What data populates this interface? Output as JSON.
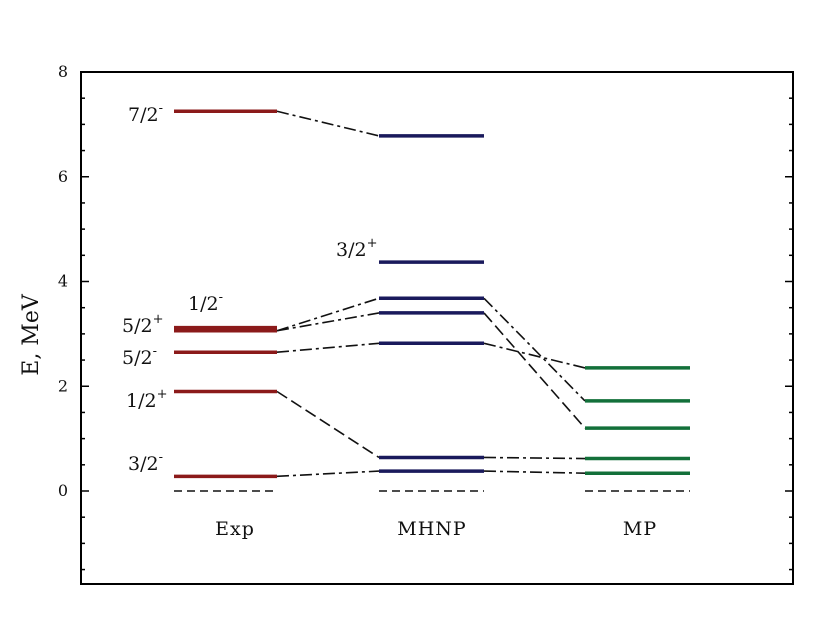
{
  "chart_data": {
    "type": "level-scheme",
    "ylabel": "E, MeV",
    "ylim": [
      -1.8,
      8
    ],
    "yticks": [
      "0",
      "2",
      "4",
      "6",
      "8"
    ],
    "ytick_values": [
      0,
      2,
      4,
      6,
      8
    ],
    "grid": false,
    "columns": [
      {
        "name": "Exp",
        "color": "#8b1a1a",
        "levels": [
          {
            "e": 0,
            "style": "dashed"
          },
          {
            "e": 0.28,
            "label": "3/2",
            "parity": "-"
          },
          {
            "e": 1.9,
            "label": "1/2",
            "parity": "+"
          },
          {
            "e": 2.65,
            "label": "5/2",
            "parity": "-"
          },
          {
            "e": 3.06,
            "label": "5/2",
            "parity": "+"
          },
          {
            "e": 3.12,
            "label": "1/2",
            "parity": "-"
          },
          {
            "e": 7.25,
            "label": "7/2",
            "parity": "-"
          }
        ]
      },
      {
        "name": "MHNP",
        "color": "#1a1a5c",
        "levels": [
          {
            "e": 0,
            "style": "dashed"
          },
          {
            "e": 0.38
          },
          {
            "e": 0.64
          },
          {
            "e": 2.82
          },
          {
            "e": 3.4
          },
          {
            "e": 3.68
          },
          {
            "e": 4.37,
            "label": "3/2",
            "parity": "+"
          },
          {
            "e": 6.78
          }
        ]
      },
      {
        "name": "MP",
        "color": "#13703a",
        "levels": [
          {
            "e": 0,
            "style": "dashed"
          },
          {
            "e": 0.34
          },
          {
            "e": 0.62
          },
          {
            "e": 1.2
          },
          {
            "e": 1.72
          },
          {
            "e": 2.35
          }
        ]
      }
    ],
    "connections": [
      {
        "from": [
          0,
          7.25
        ],
        "to": [
          1,
          6.78
        ],
        "style": "dash-dot"
      },
      {
        "from": [
          0,
          3.06
        ],
        "to": [
          1,
          3.68
        ],
        "style": "dash-dot"
      },
      {
        "from": [
          0,
          3.06
        ],
        "to": [
          1,
          3.4
        ],
        "style": "dash-dot"
      },
      {
        "from": [
          0,
          2.65
        ],
        "to": [
          1,
          2.82
        ],
        "style": "dash-dot"
      },
      {
        "from": [
          0,
          1.9
        ],
        "to": [
          1,
          0.64
        ],
        "style": "long-dash"
      },
      {
        "from": [
          0,
          0.28
        ],
        "to": [
          1,
          0.38
        ],
        "style": "dash-dot"
      },
      {
        "from": [
          1,
          3.68
        ],
        "to": [
          2,
          1.72
        ],
        "style": "dash-dot"
      },
      {
        "from": [
          1,
          3.4
        ],
        "to": [
          2,
          1.2
        ],
        "style": "long-dash"
      },
      {
        "from": [
          1,
          2.82
        ],
        "to": [
          2,
          2.35
        ],
        "style": "dash-dot"
      },
      {
        "from": [
          1,
          0.64
        ],
        "to": [
          2,
          0.62
        ],
        "style": "dash-dot"
      },
      {
        "from": [
          1,
          0.38
        ],
        "to": [
          2,
          0.34
        ],
        "style": "dash-dot"
      }
    ]
  }
}
